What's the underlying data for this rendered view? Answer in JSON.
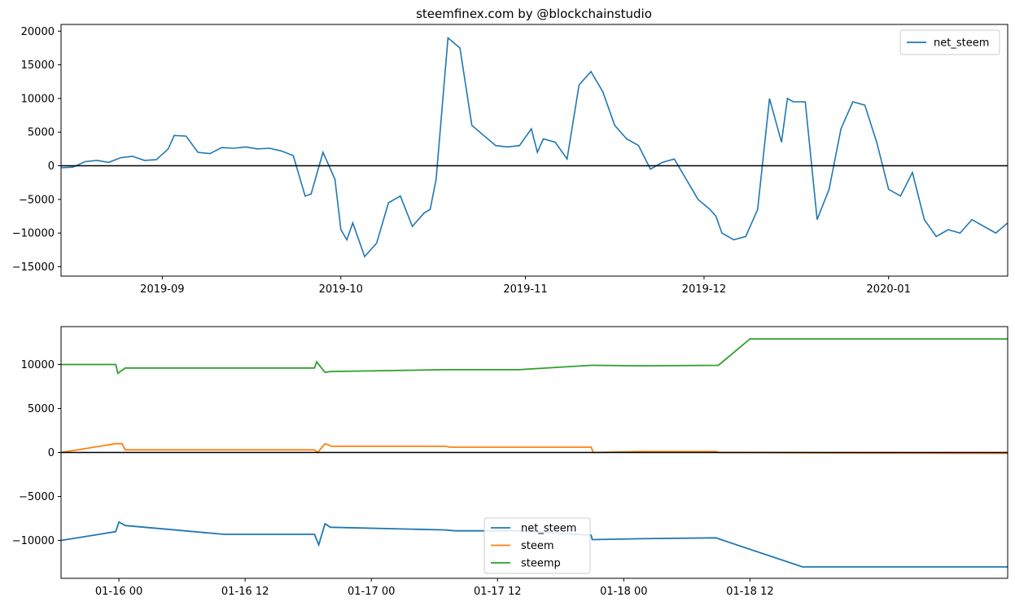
{
  "chart_data": [
    {
      "type": "line",
      "title": "steemfinex.com by @blockchainstudio",
      "xlabel": "",
      "ylabel": "",
      "ylim": [
        -16400,
        21000
      ],
      "xlim": [
        "2019-08-15",
        "2020-01-21"
      ],
      "x_ticks": [
        "2019-09-01",
        "2019-10-01",
        "2019-11-01",
        "2019-12-01",
        "2020-01-01"
      ],
      "x_tick_labels": [
        "2019-09",
        "2019-10",
        "2019-11",
        "2019-12",
        "2020-01"
      ],
      "y_ticks": [
        -15000,
        -10000,
        -5000,
        0,
        5000,
        10000,
        15000,
        20000
      ],
      "y_tick_labels": [
        "−15000",
        "−10000",
        "−5000",
        "0",
        "5000",
        "10000",
        "15000",
        "20000"
      ],
      "zero_line": true,
      "grid": false,
      "legend": "upper right",
      "series": [
        {
          "name": "net_steem",
          "color": "#1f77b4",
          "x": [
            "2019-08-15",
            "2019-08-17",
            "2019-08-19",
            "2019-08-21",
            "2019-08-23",
            "2019-08-25",
            "2019-08-27",
            "2019-08-29",
            "2019-08-31",
            "2019-09-02",
            "2019-09-03",
            "2019-09-05",
            "2019-09-07",
            "2019-09-09",
            "2019-09-11",
            "2019-09-13",
            "2019-09-15",
            "2019-09-17",
            "2019-09-19",
            "2019-09-21",
            "2019-09-23",
            "2019-09-25",
            "2019-09-26",
            "2019-09-28",
            "2019-09-30",
            "2019-10-01",
            "2019-10-02",
            "2019-10-03",
            "2019-10-05",
            "2019-10-07",
            "2019-10-09",
            "2019-10-11",
            "2019-10-13",
            "2019-10-15",
            "2019-10-16",
            "2019-10-17",
            "2019-10-19",
            "2019-10-21",
            "2019-10-23",
            "2019-10-25",
            "2019-10-27",
            "2019-10-29",
            "2019-10-31",
            "2019-11-02",
            "2019-11-03",
            "2019-11-04",
            "2019-11-06",
            "2019-11-08",
            "2019-11-10",
            "2019-11-12",
            "2019-11-14",
            "2019-11-16",
            "2019-11-18",
            "2019-11-20",
            "2019-11-22",
            "2019-11-24",
            "2019-11-26",
            "2019-11-28",
            "2019-11-30",
            "2019-12-02",
            "2019-12-03",
            "2019-12-04",
            "2019-12-06",
            "2019-12-08",
            "2019-12-10",
            "2019-12-12",
            "2019-12-14",
            "2019-12-15",
            "2019-12-16",
            "2019-12-18",
            "2019-12-20",
            "2019-12-22",
            "2019-12-24",
            "2019-12-26",
            "2019-12-28",
            "2019-12-30",
            "2020-01-01",
            "2020-01-03",
            "2020-01-05",
            "2020-01-07",
            "2020-01-09",
            "2020-01-11",
            "2020-01-13",
            "2020-01-15",
            "2020-01-17",
            "2020-01-19",
            "2020-01-21"
          ],
          "values": [
            -300,
            -200,
            600,
            800,
            500,
            1200,
            1400,
            800,
            900,
            2500,
            4500,
            4400,
            2000,
            1800,
            2700,
            2600,
            2800,
            2500,
            2600,
            2200,
            1500,
            -4500,
            -4200,
            2000,
            -2000,
            -9500,
            -11000,
            -8500,
            -13500,
            -11500,
            -5500,
            -4500,
            -9000,
            -7000,
            -6500,
            -2000,
            19000,
            17500,
            6000,
            4500,
            3000,
            2800,
            3000,
            5500,
            2000,
            4000,
            3500,
            1000,
            12000,
            14000,
            11000,
            6000,
            4000,
            3000,
            -500,
            500,
            1000,
            -2000,
            -5000,
            -6500,
            -7500,
            -10000,
            -11000,
            -10500,
            -6500,
            10000,
            3500,
            10000,
            9500,
            9500,
            -8000,
            -3500,
            5500,
            9500,
            9000,
            3500,
            -3500,
            -4500,
            -1000,
            -8000,
            -10500,
            -9500,
            -10000,
            -8000,
            -9000,
            -10000,
            -8500
          ]
        }
      ]
    },
    {
      "type": "line",
      "title": "",
      "xlabel": "",
      "ylabel": "",
      "ylim": [
        -14300,
        14300
      ],
      "xlim_hours": [
        -5.5,
        84.5
      ],
      "x_ticks_hours": [
        0,
        12,
        24,
        36,
        48,
        60
      ],
      "x_tick_labels": [
        "01-16 00",
        "01-16 12",
        "01-17 00",
        "01-17 12",
        "01-18 00",
        "01-18 12"
      ],
      "y_ticks": [
        -10000,
        -5000,
        0,
        5000,
        10000
      ],
      "y_tick_labels": [
        "−10000",
        "−5000",
        "0",
        "5000",
        "10000"
      ],
      "zero_line": true,
      "grid": false,
      "legend": "lower center",
      "series": [
        {
          "name": "net_steem",
          "color": "#1f77b4",
          "x_hours": [
            -5.5,
            -0.3,
            0.0,
            0.6,
            10.0,
            18.6,
            19.0,
            19.6,
            20.1,
            31.0,
            32.0,
            38.0,
            44.9,
            45.0,
            49.6,
            56.8,
            57.0,
            65.0,
            84.5
          ],
          "values": [
            -10000,
            -9000,
            -7900,
            -8300,
            -9300,
            -9300,
            -10500,
            -8100,
            -8500,
            -8800,
            -8900,
            -8900,
            -9400,
            -9900,
            -9800,
            -9700,
            -9800,
            -13000,
            -13000
          ]
        },
        {
          "name": "steem",
          "color": "#ff7f0e",
          "x_hours": [
            -5.5,
            -0.3,
            0.3,
            0.6,
            10.0,
            18.6,
            18.9,
            19.6,
            20.2,
            31.0,
            31.5,
            38.0,
            44.9,
            45.1,
            49.6,
            56.8,
            57.0,
            84.5
          ],
          "values": [
            0,
            1000,
            1000,
            300,
            300,
            300,
            0,
            1000,
            700,
            700,
            600,
            600,
            600,
            0,
            100,
            100,
            0,
            -100
          ]
        },
        {
          "name": "steemp",
          "color": "#2ca02c",
          "x_hours": [
            -5.5,
            -0.3,
            -0.1,
            0.6,
            10.0,
            18.6,
            18.8,
            19.6,
            20.1,
            31.0,
            38.0,
            44.9,
            45.1,
            49.6,
            57.0,
            60.0,
            84.5
          ],
          "values": [
            10000,
            10000,
            9000,
            9600,
            9600,
            9600,
            10300,
            9100,
            9200,
            9400,
            9400,
            9900,
            9900,
            9850,
            9900,
            12900,
            12900
          ]
        }
      ]
    }
  ]
}
